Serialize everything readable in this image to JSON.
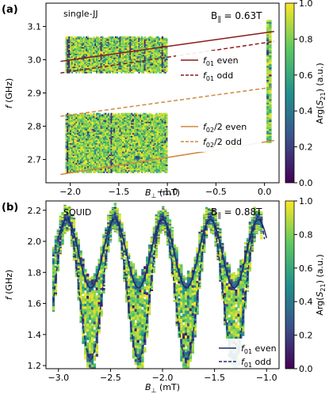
{
  "colormap": [
    "#440154",
    "#3b528b",
    "#21918c",
    "#5ec962",
    "#fde725"
  ],
  "colors": {
    "even": "#8b1a1a",
    "odd": "#8b1a1a",
    "f02": "#d08a40",
    "squid": "#1f2a6b"
  },
  "chart_data": [
    {
      "type": "heatmap",
      "panel_label": "(a)",
      "inset_text": "single-JJ",
      "field_label_prefix": "B",
      "field_label_sub": "∥",
      "field_label_value": " = 0.63T",
      "xlabel": "B⊥ (mT)",
      "ylabel": "f (GHz)",
      "xlim": [
        -2.25,
        0.15
      ],
      "ylim": [
        2.63,
        3.17
      ],
      "xticks": [
        -2.0,
        -1.5,
        -1.0,
        -0.5,
        0.0
      ],
      "xtick_labels": [
        "−2.0",
        "−1.5",
        "−1.0",
        "−0.5",
        "0.0"
      ],
      "yticks": [
        2.7,
        2.8,
        2.9,
        3.0,
        3.1
      ],
      "ytick_labels": [
        "2.7",
        "2.8",
        "2.9",
        "3.0",
        "3.1"
      ],
      "colorbar_label": "Arg(S21) (a.u.)",
      "colorbar_ticks": [
        "0.0",
        "0.2",
        "0.4",
        "0.6",
        "0.8",
        "1.0"
      ],
      "data_regions": [
        {
          "x": [
            -2.05,
            -1.0
          ],
          "y": [
            2.96,
            3.07
          ]
        },
        {
          "x": [
            -2.05,
            -1.0
          ],
          "y": [
            2.66,
            2.84
          ]
        },
        {
          "x": [
            0.02,
            0.07
          ],
          "y": [
            2.75,
            3.12
          ]
        }
      ],
      "series": [
        {
          "name": "f01 even",
          "style": "solid",
          "color_key": "even",
          "x": [
            -2.1,
            0.1
          ],
          "y": [
            2.995,
            3.085
          ]
        },
        {
          "name": "f01 odd",
          "style": "dashed",
          "color_key": "odd",
          "x": [
            -2.1,
            0.1
          ],
          "y": [
            2.96,
            3.055
          ]
        },
        {
          "name": "f02/2 even",
          "style": "solid",
          "color_key": "f02",
          "x": [
            -2.1,
            0.1
          ],
          "y": [
            2.655,
            2.757
          ]
        },
        {
          "name": "f02/2 odd",
          "style": "dashed",
          "color_key": "f02",
          "x": [
            -2.1,
            0.1
          ],
          "y": [
            2.83,
            2.918
          ]
        }
      ],
      "legend": [
        {
          "main": "f",
          "sub": "01",
          "rest": " even",
          "style": "solid",
          "color_key": "even"
        },
        {
          "main": "f",
          "sub": "01",
          "rest": " odd",
          "style": "dashed",
          "color_key": "odd"
        },
        {
          "main": "f",
          "sub": "02",
          "rest": "/2 even",
          "style": "solid",
          "color_key": "f02"
        },
        {
          "main": "f",
          "sub": "02",
          "rest": "/2 odd",
          "style": "dashed",
          "color_key": "f02"
        }
      ]
    },
    {
      "type": "heatmap",
      "panel_label": "(b)",
      "inset_text": "SQUID",
      "field_label_prefix": "B",
      "field_label_sub": "∥",
      "field_label_value": " = 0.88T",
      "xlabel": "B⊥ (mT)",
      "ylabel": "f (GHz)",
      "xlim": [
        -3.12,
        -0.88
      ],
      "ylim": [
        1.18,
        2.26
      ],
      "xticks": [
        -3.0,
        -2.5,
        -2.0,
        -1.5,
        -1.0
      ],
      "xtick_labels": [
        "−3.0",
        "−2.5",
        "−2.0",
        "−1.5",
        "−1.0"
      ],
      "yticks": [
        1.2,
        1.4,
        1.6,
        1.8,
        2.0,
        2.2
      ],
      "ytick_labels": [
        "1.2",
        "1.4",
        "1.6",
        "1.8",
        "2.0",
        "2.2"
      ],
      "colorbar_label": "Arg(S21) (a.u.)",
      "colorbar_ticks": [
        "0.0",
        "0.2",
        "0.4",
        "0.6",
        "0.8",
        "1.0"
      ],
      "period_mT": 0.46,
      "even_curve": {
        "center": 1.92,
        "amplitude": 0.22,
        "x_max": -2.92,
        "x_range": [
          -3.0,
          -1.0
        ]
      },
      "odd_curve": {
        "center": 1.7,
        "amplitude": 0.46,
        "x_max": -2.92,
        "x_range": [
          -3.05,
          -1.02
        ]
      },
      "series": [
        {
          "name": "f01 even",
          "style": "solid",
          "color_key": "squid"
        },
        {
          "name": "f01 odd",
          "style": "dashed",
          "color_key": "squid"
        }
      ],
      "legend": [
        {
          "main": "f",
          "sub": "01",
          "rest": " even",
          "style": "solid",
          "color_key": "squid"
        },
        {
          "main": "f",
          "sub": "01",
          "rest": " odd",
          "style": "dashed",
          "color_key": "squid"
        }
      ]
    }
  ]
}
